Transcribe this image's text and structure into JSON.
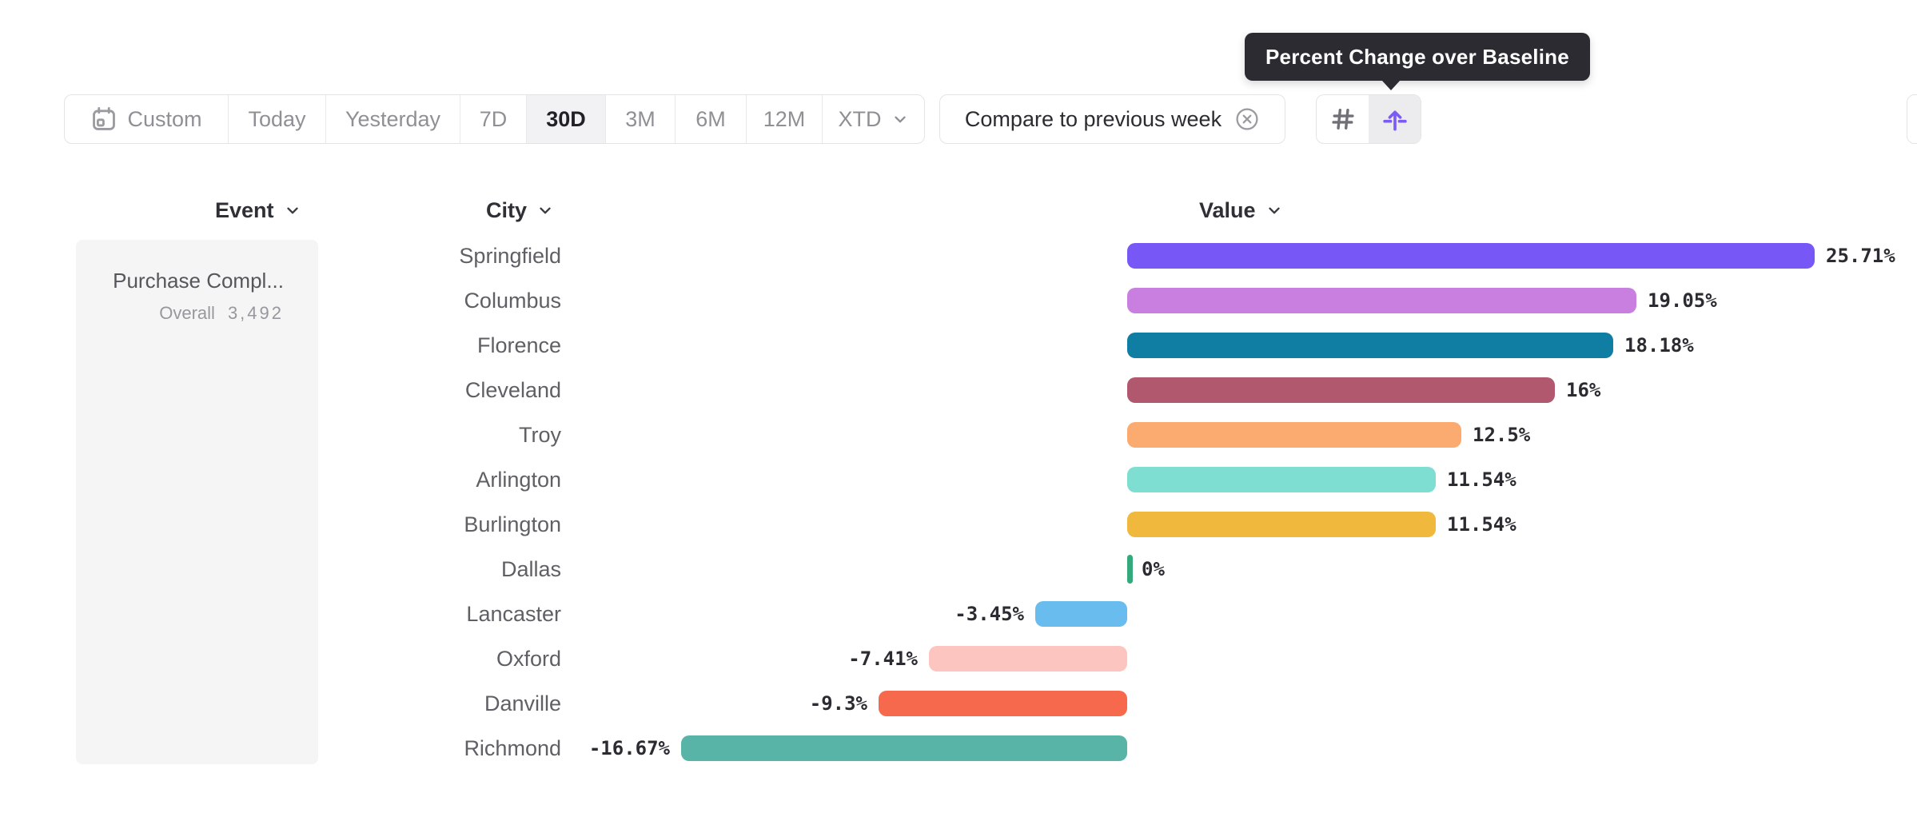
{
  "tooltip": {
    "text": "Percent Change over Baseline"
  },
  "toolbar": {
    "date_ranges": [
      {
        "label": "Custom"
      },
      {
        "label": "Today"
      },
      {
        "label": "Yesterday"
      },
      {
        "label": "7D"
      },
      {
        "label": "30D",
        "selected": true
      },
      {
        "label": "3M"
      },
      {
        "label": "6M"
      },
      {
        "label": "12M"
      },
      {
        "label": "XTD"
      }
    ],
    "compare_label": "Compare to previous week",
    "view_modes": [
      {
        "name": "grid-values",
        "selected": false
      },
      {
        "name": "percent-change-over-baseline",
        "selected": true
      }
    ]
  },
  "columns": {
    "event": "Event",
    "city": "City",
    "value": "Value"
  },
  "event_panel": {
    "name": "Purchase Compl...",
    "overall_label": "Overall",
    "overall_value": "3,492"
  },
  "chart_data": {
    "type": "bar",
    "orientation": "horizontal",
    "unit": "%",
    "baseline": 0,
    "xlim": [
      -21,
      29.5
    ],
    "grid": false,
    "legend": "none",
    "categories": [
      "Springfield",
      "Columbus",
      "Florence",
      "Cleveland",
      "Troy",
      "Arlington",
      "Burlington",
      "Dallas",
      "Lancaster",
      "Oxford",
      "Danville",
      "Richmond"
    ],
    "values": [
      25.71,
      19.05,
      18.18,
      16,
      12.5,
      11.54,
      11.54,
      0,
      -3.45,
      -7.41,
      -9.3,
      -16.67
    ],
    "labels": [
      "25.71%",
      "19.05%",
      "18.18%",
      "16%",
      "12.5%",
      "11.54%",
      "11.54%",
      "0%",
      "-3.45%",
      "-7.41%",
      "-9.3%",
      "-16.67%"
    ],
    "colors": [
      "#7757f6",
      "#c87fdf",
      "#107ea3",
      "#b2586e",
      "#fbaa70",
      "#7fded2",
      "#f0b93d",
      "#34a97b",
      "#69bcee",
      "#fcc5bf",
      "#f7694d",
      "#58b4a7"
    ]
  }
}
